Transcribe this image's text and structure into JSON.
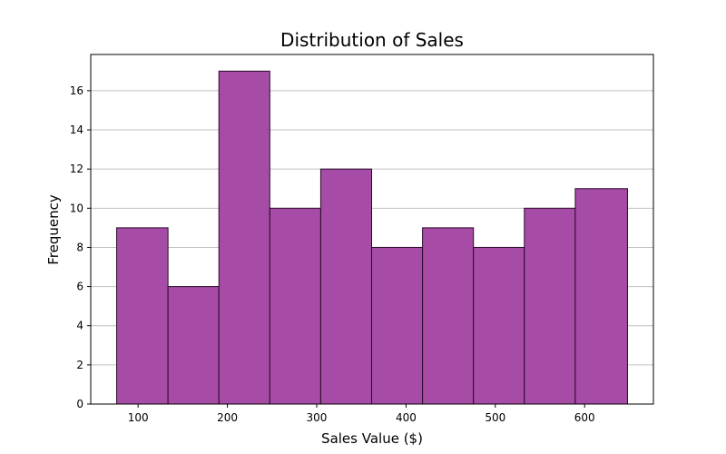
{
  "chart_data": {
    "type": "bar",
    "title": "Distribution of Sales",
    "xlabel": "Sales Value ($)",
    "ylabel": "Frequency",
    "bins": [
      [
        76.0,
        133.5
      ],
      [
        133.5,
        190.5
      ],
      [
        190.5,
        247.5
      ],
      [
        247.5,
        304.5
      ],
      [
        304.5,
        361.5
      ],
      [
        361.5,
        418.5
      ],
      [
        418.5,
        475.5
      ],
      [
        475.5,
        532.5
      ],
      [
        532.5,
        589.5
      ],
      [
        589.5,
        648.0
      ]
    ],
    "values": [
      9,
      6,
      17,
      10,
      12,
      8,
      9,
      8,
      10,
      11
    ],
    "xlim": [
      47,
      677
    ],
    "ylim": [
      0,
      17.85
    ],
    "xticks": [
      100,
      200,
      300,
      400,
      500,
      600
    ],
    "yticks": [
      0,
      2,
      4,
      6,
      8,
      10,
      12,
      14,
      16
    ],
    "grid": "y",
    "bar_color": "#a64ca6",
    "bar_edge_color": "#2a0a2a"
  }
}
